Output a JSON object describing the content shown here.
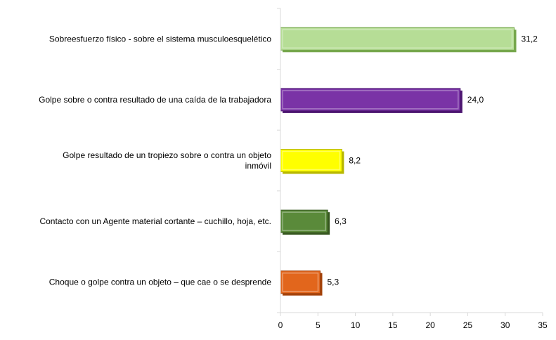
{
  "chart_data": {
    "type": "bar",
    "orientation": "horizontal",
    "title": "",
    "xlabel": "",
    "ylabel": "",
    "xlim": [
      0,
      35
    ],
    "xticks": [
      0,
      5,
      10,
      15,
      20,
      25,
      30,
      35
    ],
    "grid": false,
    "legend": "none",
    "categories": [
      [
        "Sobreesfuerzo físico - sobre el sistema musculoesquelético"
      ],
      [
        "Golpe sobre o contra resultado de una caída de la trabajadora"
      ],
      [
        "Golpe resultado de un tropiezo sobre o contra un objeto",
        "inmóvil"
      ],
      [
        "Contacto con un Agente material cortante –  cuchillo, hoja, etc."
      ],
      [
        "Choque o golpe contra un objeto – que cae o se desprende"
      ]
    ],
    "values": [
      31.2,
      24.0,
      8.2,
      6.3,
      5.3
    ],
    "data_labels": [
      "31,2",
      "24,0",
      "8,2",
      "6,3",
      "5,3"
    ],
    "colors": [
      {
        "fill": "#b6dd96",
        "stroke": "#76a74c"
      },
      {
        "fill": "#7a33a6",
        "stroke": "#4c1570"
      },
      {
        "fill": "#ffff00",
        "stroke": "#b8b800"
      },
      {
        "fill": "#5a8a3a",
        "stroke": "#36571f"
      },
      {
        "fill": "#e2661c",
        "stroke": "#a4420a"
      }
    ],
    "axis_color": "#d9d9d9"
  }
}
